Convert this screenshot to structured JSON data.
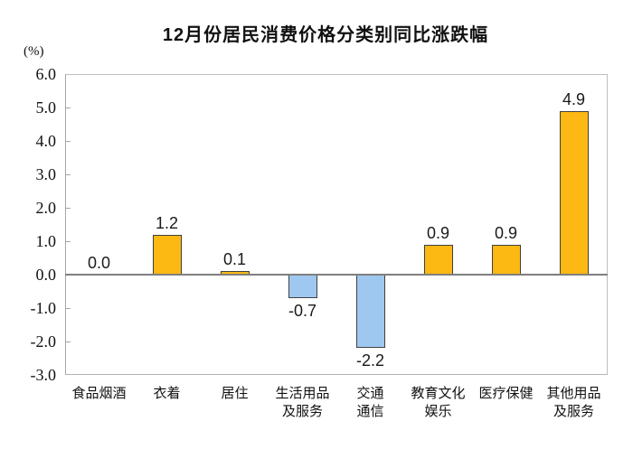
{
  "title": "12月份居民消费价格分类别同比涨跌幅",
  "chart_data": {
    "type": "bar",
    "title": "12月份居民消费价格分类别同比涨跌幅",
    "unit_label": "(%)",
    "categories": [
      "食品烟酒",
      "衣着",
      "居住",
      "生活用品及服务",
      "交通通信",
      "教育文化娱乐",
      "医疗保健",
      "其他用品及服务"
    ],
    "category_lines": [
      [
        "食品烟酒"
      ],
      [
        "衣着"
      ],
      [
        "居住"
      ],
      [
        "生活用品",
        "及服务"
      ],
      [
        "交通",
        "通信"
      ],
      [
        "教育文化",
        "娱乐"
      ],
      [
        "医疗保健"
      ],
      [
        "其他用品",
        "及服务"
      ]
    ],
    "values": [
      0.0,
      1.2,
      0.1,
      -0.7,
      -2.2,
      0.9,
      0.9,
      4.9
    ],
    "value_labels": [
      "0.0",
      "1.2",
      "0.1",
      "-0.7",
      "-2.2",
      "0.9",
      "0.9",
      "4.9"
    ],
    "ylim": [
      -3.0,
      6.0
    ],
    "ytick_step": 1.0,
    "ytick_labels": [
      "6.0",
      "5.0",
      "4.0",
      "3.0",
      "2.0",
      "1.0",
      "0.0",
      "-1.0",
      "-2.0",
      "-3.0"
    ],
    "grid": false,
    "legend": "none",
    "colors": {
      "positive_bar": "#FCB813",
      "negative_bar": "#9FC8F0",
      "bar_border": "#404040",
      "plot_border": "#BFBFBF",
      "zero_line": "#7F7F7F",
      "text": "#111111"
    }
  }
}
